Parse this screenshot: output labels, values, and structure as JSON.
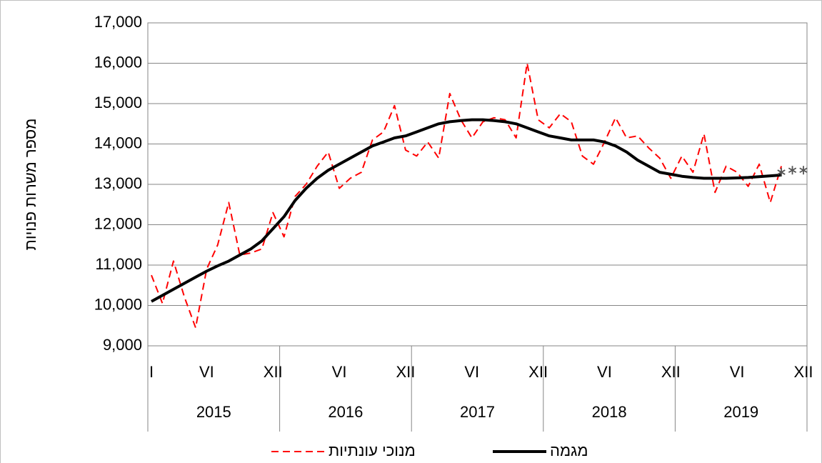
{
  "chart_data": {
    "type": "line",
    "y_label": "מספר משרות פנויות",
    "categories": [
      "I",
      null,
      null,
      null,
      null,
      "VI",
      null,
      null,
      null,
      null,
      null,
      "XII",
      null,
      null,
      null,
      null,
      null,
      "VI",
      null,
      null,
      null,
      null,
      null,
      "XII",
      null,
      null,
      null,
      null,
      null,
      "VI",
      null,
      null,
      null,
      null,
      null,
      "XII",
      null,
      null,
      null,
      null,
      null,
      "VI",
      null,
      null,
      null,
      null,
      null,
      "XII",
      null,
      null,
      null,
      null,
      null,
      "VI",
      null,
      null,
      null,
      null,
      null,
      "XII"
    ],
    "groups": [
      "2015",
      "2016",
      "2017",
      "2018",
      "2019"
    ],
    "series": [
      {
        "name": "מנוכי עונתיות",
        "color": "#ff0000",
        "dash": true,
        "values": [
          10750,
          10050,
          11100,
          10200,
          9450,
          10900,
          11500,
          12550,
          11250,
          11300,
          11400,
          12300,
          11700,
          12700,
          13000,
          13450,
          13800,
          12900,
          13150,
          13300,
          14100,
          14300,
          14950,
          13850,
          13700,
          14050,
          13650,
          15250,
          14600,
          14150,
          14550,
          14650,
          14600,
          14150,
          16000,
          14600,
          14400,
          14750,
          14550,
          13700,
          13500,
          14050,
          14650,
          14150,
          14200,
          13900,
          13650,
          13150,
          13700,
          13300,
          14250,
          12800,
          13450,
          13300,
          12950,
          13500,
          12550,
          13450,
          null,
          null
        ]
      },
      {
        "name": "מגמה",
        "color": "#000000",
        "dash": false,
        "values": [
          10100,
          10250,
          10400,
          10550,
          10700,
          10850,
          10980,
          11100,
          11250,
          11400,
          11600,
          11900,
          12200,
          12600,
          12900,
          13150,
          13350,
          13500,
          13650,
          13800,
          13950,
          14050,
          14150,
          14200,
          14300,
          14400,
          14500,
          14550,
          14580,
          14600,
          14600,
          14580,
          14550,
          14500,
          14400,
          14300,
          14200,
          14150,
          14100,
          14100,
          14100,
          14050,
          13950,
          13800,
          13600,
          13450,
          13300,
          13250,
          13200,
          13170,
          13150,
          13150,
          13150,
          13160,
          13170,
          13190,
          13210,
          13230,
          null,
          null
        ]
      },
      {
        "color": "#555555",
        "marker": "asterisk",
        "values": [
          null,
          null,
          null,
          null,
          null,
          null,
          null,
          null,
          null,
          null,
          null,
          null,
          null,
          null,
          null,
          null,
          null,
          null,
          null,
          null,
          null,
          null,
          null,
          null,
          null,
          null,
          null,
          null,
          null,
          null,
          null,
          null,
          null,
          null,
          null,
          null,
          null,
          null,
          null,
          null,
          null,
          null,
          null,
          null,
          null,
          null,
          null,
          null,
          null,
          null,
          null,
          null,
          null,
          null,
          null,
          null,
          null,
          13300,
          13350,
          13350
        ]
      }
    ],
    "ylim": [
      9000,
      17000
    ],
    "yticks": [
      {
        "value": 9000,
        "label": "9,000"
      },
      {
        "value": 10000,
        "label": "10,000"
      },
      {
        "value": 11000,
        "label": "11,000"
      },
      {
        "value": 12000,
        "label": "12,000"
      },
      {
        "value": 13000,
        "label": "13,000"
      },
      {
        "value": 14000,
        "label": "14,000"
      },
      {
        "value": 15000,
        "label": "15,000"
      },
      {
        "value": 16000,
        "label": "16,000"
      },
      {
        "value": 17000,
        "label": "17,000"
      }
    ],
    "grid": true,
    "legend": "bottom"
  }
}
